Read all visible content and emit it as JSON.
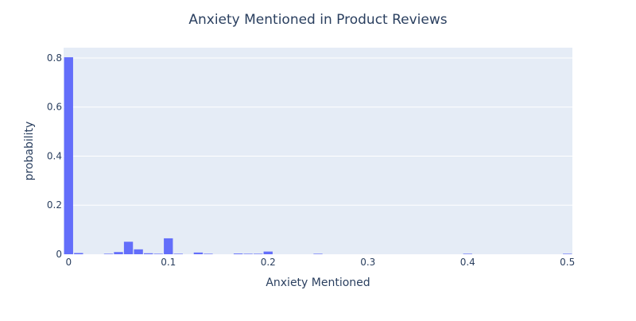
{
  "chart_data": {
    "type": "bar",
    "title": "Anxiety Mentioned in Product Reviews",
    "xlabel": "Anxiety Mentioned",
    "ylabel": "probability",
    "xlim": [
      -0.005,
      0.505
    ],
    "ylim": [
      0,
      0.8421
    ],
    "grid": true,
    "bar_color": "#636efa",
    "plot_bg": "#e5ecf6",
    "bin_width": 0.01,
    "x_ticks": [
      {
        "value": 0,
        "label": "0"
      },
      {
        "value": 0.1,
        "label": "0.1"
      },
      {
        "value": 0.2,
        "label": "0.2"
      },
      {
        "value": 0.3,
        "label": "0.3"
      },
      {
        "value": 0.4,
        "label": "0.4"
      },
      {
        "value": 0.5,
        "label": "0.5"
      }
    ],
    "y_ticks": [
      {
        "value": 0,
        "label": "0"
      },
      {
        "value": 0.2,
        "label": "0.2"
      },
      {
        "value": 0.4,
        "label": "0.4"
      },
      {
        "value": 0.6,
        "label": "0.6"
      },
      {
        "value": 0.8,
        "label": "0.8"
      }
    ],
    "bins": [
      {
        "x": 0.0,
        "y": 0.803
      },
      {
        "x": 0.01,
        "y": 0.005
      },
      {
        "x": 0.04,
        "y": 0.002
      },
      {
        "x": 0.05,
        "y": 0.009
      },
      {
        "x": 0.06,
        "y": 0.051
      },
      {
        "x": 0.07,
        "y": 0.02
      },
      {
        "x": 0.08,
        "y": 0.004
      },
      {
        "x": 0.09,
        "y": 0.002
      },
      {
        "x": 0.1,
        "y": 0.065
      },
      {
        "x": 0.11,
        "y": 0.002
      },
      {
        "x": 0.13,
        "y": 0.007
      },
      {
        "x": 0.14,
        "y": 0.002
      },
      {
        "x": 0.17,
        "y": 0.003
      },
      {
        "x": 0.18,
        "y": 0.002
      },
      {
        "x": 0.19,
        "y": 0.002
      },
      {
        "x": 0.2,
        "y": 0.011
      },
      {
        "x": 0.25,
        "y": 0.002
      },
      {
        "x": 0.4,
        "y": 0.002
      },
      {
        "x": 0.5,
        "y": 0.002
      }
    ]
  }
}
